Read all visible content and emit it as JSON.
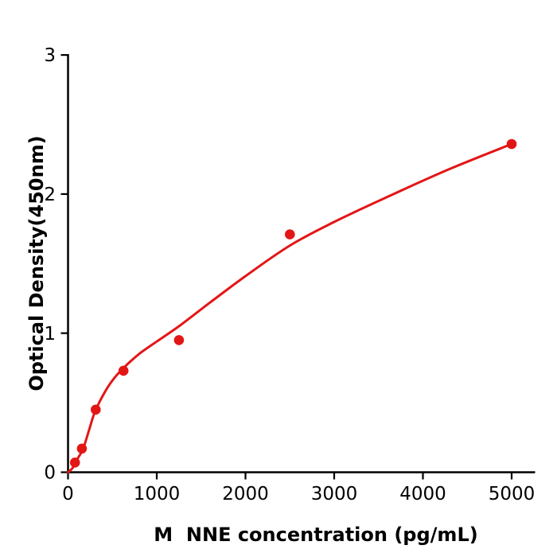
{
  "figure": {
    "background": "#ffffff",
    "type_description": "ELISA standard curve plot"
  },
  "chart_data": {
    "type": "scatter",
    "title": "",
    "xlabel": "M  NNE concentration (pg/mL)",
    "ylabel": "Optical Density(450nm)",
    "x_ticks": [
      0,
      1000,
      2000,
      3000,
      4000,
      5000
    ],
    "y_ticks": [
      0,
      1,
      2,
      3
    ],
    "xlim": [
      0,
      5270
    ],
    "ylim": [
      0,
      3
    ],
    "grid": false,
    "legend_position": "none",
    "colors": {
      "series": "#e31616",
      "axis": "#000000",
      "background": "#ffffff"
    },
    "series": [
      {
        "name": "standard-points",
        "type": "scatter",
        "marker": "circle",
        "marker_radius_px": 6.3,
        "color": "#e31616",
        "x": [
          78.125,
          156.25,
          312.5,
          625,
          1250,
          2500,
          5000
        ],
        "y": [
          0.07,
          0.17,
          0.45,
          0.73,
          0.95,
          1.71,
          2.36
        ]
      },
      {
        "name": "fitted-curve",
        "type": "line",
        "color": "#e31616",
        "stroke_width_px": 3,
        "x": [
          0,
          50,
          100,
          170,
          240,
          300,
          400,
          500,
          625,
          800,
          1000,
          1250,
          1600,
          2000,
          2500,
          3000,
          3600,
          4300,
          5000
        ],
        "y": [
          0,
          0.03,
          0.09,
          0.17,
          0.31,
          0.43,
          0.56,
          0.66,
          0.75,
          0.85,
          0.94,
          1.05,
          1.22,
          1.41,
          1.63,
          1.8,
          1.98,
          2.18,
          2.36
        ]
      }
    ]
  }
}
